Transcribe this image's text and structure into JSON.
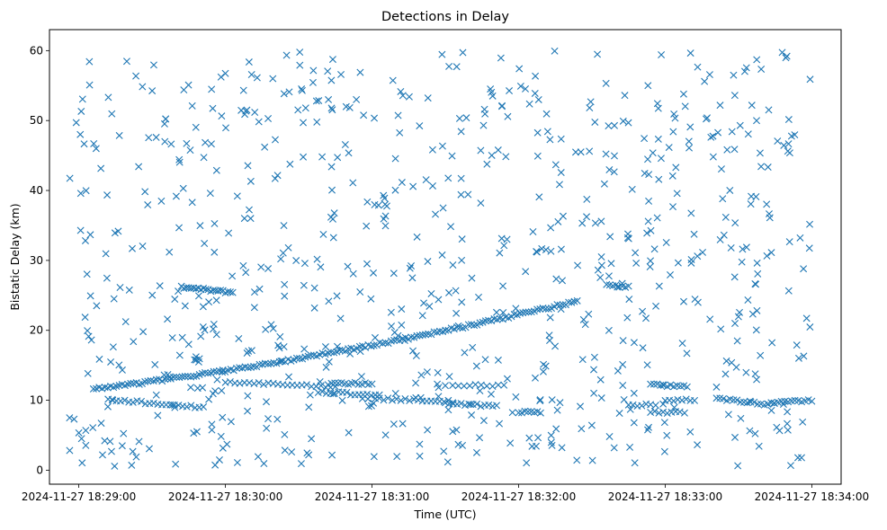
{
  "chart_data": {
    "type": "scatter",
    "title": "Detections in Delay",
    "xlabel": "Time (UTC)",
    "ylabel": "Bistatic Delay (km)",
    "marker": "x",
    "color": "#1f77b4",
    "xlim": [
      "2024-11-27 18:28:48",
      "2024-11-27 18:34:12"
    ],
    "ylim": [
      -2,
      63
    ],
    "xticks": [
      "2024-11-27 18:29:00",
      "2024-11-27 18:30:00",
      "2024-11-27 18:31:00",
      "2024-11-27 18:32:00",
      "2024-11-27 18:33:00",
      "2024-11-27 18:34:00"
    ],
    "yticks": [
      0,
      10,
      20,
      30,
      40,
      50,
      60
    ],
    "grid": false,
    "legend": "none",
    "tracks": [
      {
        "from": "2024-11-27 18:29:06",
        "to": "2024-11-27 18:32:24",
        "delay_start": 11.6,
        "delay_end": 24.2,
        "curvature": -4.0,
        "detections": 170
      },
      {
        "from": "2024-11-27 18:29:42",
        "to": "2024-11-27 18:30:03",
        "delay_start": 26.2,
        "delay_end": 25.4,
        "curvature": 0,
        "detections": 22
      },
      {
        "from": "2024-11-27 18:29:12",
        "to": "2024-11-27 18:29:51",
        "delay_start": 10.1,
        "delay_end": 9.0,
        "curvature": 0,
        "detections": 24
      },
      {
        "from": "2024-11-27 18:30:00",
        "to": "2024-11-27 18:30:45",
        "delay_start": 12.6,
        "delay_end": 11.9,
        "curvature": 0,
        "detections": 24
      },
      {
        "from": "2024-11-27 18:30:42",
        "to": "2024-11-27 18:31:00",
        "delay_start": 12.4,
        "delay_end": 12.4,
        "curvature": 0,
        "detections": 14
      },
      {
        "from": "2024-11-27 18:30:38",
        "to": "2024-11-27 18:31:03",
        "delay_start": 11.2,
        "delay_end": 10.7,
        "curvature": 0,
        "detections": 16
      },
      {
        "from": "2024-11-27 18:31:03",
        "to": "2024-11-27 18:31:33",
        "delay_start": 10.2,
        "delay_end": 9.8,
        "curvature": 0,
        "detections": 18
      },
      {
        "from": "2024-11-27 18:31:30",
        "to": "2024-11-27 18:31:51",
        "delay_start": 9.5,
        "delay_end": 9.2,
        "curvature": 0,
        "detections": 14
      },
      {
        "from": "2024-11-27 18:31:33",
        "to": "2024-11-27 18:31:54",
        "delay_start": 12.1,
        "delay_end": 12.1,
        "curvature": 0,
        "detections": 10
      },
      {
        "from": "2024-11-27 18:32:00",
        "to": "2024-11-27 18:32:09",
        "delay_start": 8.3,
        "delay_end": 8.3,
        "curvature": 0,
        "detections": 8
      },
      {
        "from": "2024-11-27 18:32:36",
        "to": "2024-11-27 18:32:45",
        "delay_start": 26.4,
        "delay_end": 26.2,
        "curvature": 0,
        "detections": 8
      },
      {
        "from": "2024-11-27 18:32:45",
        "to": "2024-11-27 18:32:54",
        "delay_start": 9.3,
        "delay_end": 9.3,
        "curvature": 0,
        "detections": 6
      },
      {
        "from": "2024-11-27 18:32:54",
        "to": "2024-11-27 18:33:09",
        "delay_start": 12.2,
        "delay_end": 12.0,
        "curvature": 0,
        "detections": 12
      },
      {
        "from": "2024-11-27 18:32:54",
        "to": "2024-11-27 18:33:06",
        "delay_start": 8.3,
        "delay_end": 8.3,
        "curvature": 0,
        "detections": 8
      },
      {
        "from": "2024-11-27 18:33:00",
        "to": "2024-11-27 18:33:12",
        "delay_start": 10.0,
        "delay_end": 10.0,
        "curvature": 0,
        "detections": 8
      },
      {
        "from": "2024-11-27 18:33:21",
        "to": "2024-11-27 18:33:42",
        "delay_start": 10.3,
        "delay_end": 9.3,
        "curvature": 0,
        "detections": 16
      },
      {
        "from": "2024-11-27 18:33:42",
        "to": "2024-11-27 18:34:00",
        "delay_start": 9.6,
        "delay_end": 10.0,
        "curvature": 0,
        "detections": 14
      }
    ],
    "clutter": {
      "from": "2024-11-27 18:28:56",
      "to": "2024-11-27 18:34:00",
      "delay_min": 0.5,
      "delay_max": 60,
      "detections": 760
    }
  }
}
